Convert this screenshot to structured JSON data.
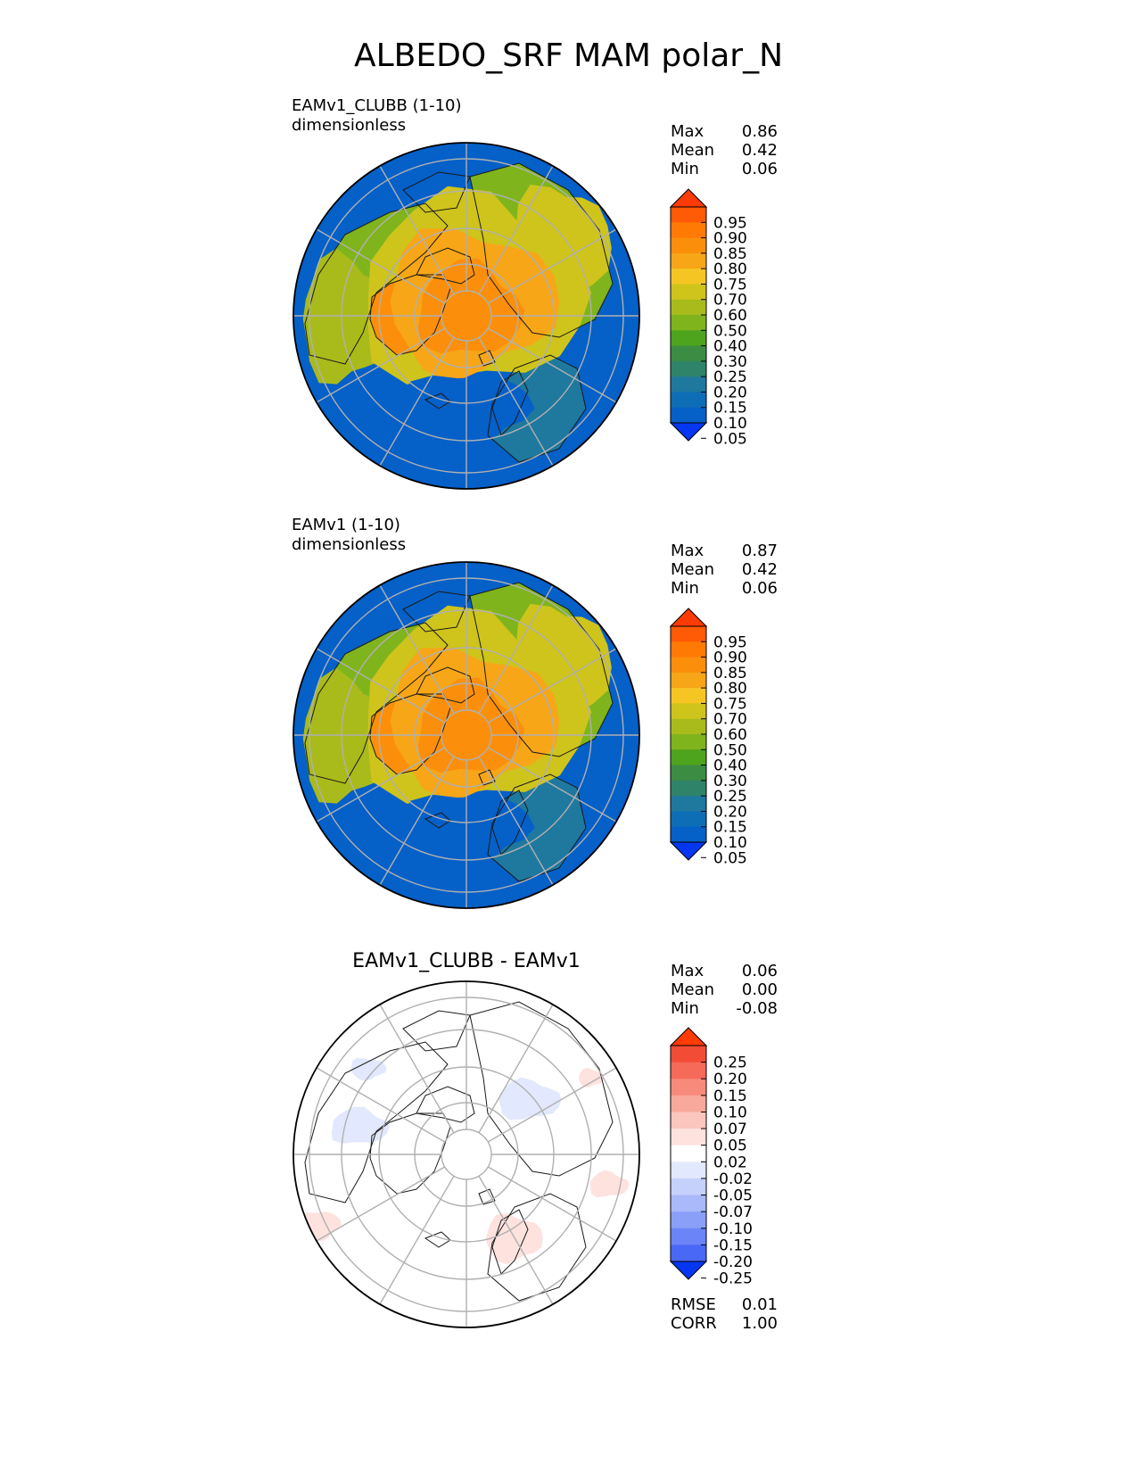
{
  "figure": {
    "title": "ALBEDO_SRF MAM polar_N"
  },
  "panels": [
    {
      "id": "test",
      "name_line": "EAMv1_CLUBB (1-10)",
      "units": "dimensionless",
      "stats": [
        {
          "label": "Max",
          "value": "0.86"
        },
        {
          "label": "Mean",
          "value": "0.42"
        },
        {
          "label": "Min",
          "value": "0.06"
        }
      ],
      "colorbar": {
        "ticks": [
          "0.95",
          "0.90",
          "0.85",
          "0.80",
          "0.75",
          "0.70",
          "0.60",
          "0.50",
          "0.40",
          "0.30",
          "0.25",
          "0.20",
          "0.15",
          "0.10",
          "0.05"
        ],
        "colors": [
          "#0537f0",
          "#0560c8",
          "#0d6eb6",
          "#1f789e",
          "#2f8368",
          "#3c8c43",
          "#4ea41c",
          "#7fb41c",
          "#a9bb1b",
          "#cec41c",
          "#f5c623",
          "#f7a618",
          "#fb8f0b",
          "#fe7a05",
          "#ff5a05",
          "#fe3a05"
        ],
        "under": "#0537f0",
        "over": "#fe3a05"
      }
    },
    {
      "id": "ref",
      "name_line": "EAMv1 (1-10)",
      "units": "dimensionless",
      "stats": [
        {
          "label": "Max",
          "value": "0.87"
        },
        {
          "label": "Mean",
          "value": "0.42"
        },
        {
          "label": "Min",
          "value": "0.06"
        }
      ],
      "colorbar": {
        "ticks": [
          "0.95",
          "0.90",
          "0.85",
          "0.80",
          "0.75",
          "0.70",
          "0.60",
          "0.50",
          "0.40",
          "0.30",
          "0.25",
          "0.20",
          "0.15",
          "0.10",
          "0.05"
        ],
        "colors": [
          "#0537f0",
          "#0560c8",
          "#0d6eb6",
          "#1f789e",
          "#2f8368",
          "#3c8c43",
          "#4ea41c",
          "#7fb41c",
          "#a9bb1b",
          "#cec41c",
          "#f5c623",
          "#f7a618",
          "#fb8f0b",
          "#fe7a05",
          "#ff5a05",
          "#fe3a05"
        ],
        "under": "#0537f0",
        "over": "#fe3a05"
      }
    },
    {
      "id": "diff",
      "title": "EAMv1_CLUBB - EAMv1",
      "stats": [
        {
          "label": "Max",
          "value": "0.06"
        },
        {
          "label": "Mean",
          "value": "0.00"
        },
        {
          "label": "Min",
          "value": "-0.08"
        }
      ],
      "metrics": [
        {
          "label": "RMSE",
          "value": "0.01"
        },
        {
          "label": "CORR",
          "value": "1.00"
        }
      ],
      "colorbar": {
        "ticks": [
          "0.25",
          "0.20",
          "0.15",
          "0.10",
          "0.07",
          "0.05",
          "0.02",
          "-0.02",
          "-0.05",
          "-0.07",
          "-0.10",
          "-0.15",
          "-0.20",
          "-0.25"
        ],
        "colors": [
          "#2e4ff5",
          "#4a68f6",
          "#6b84f7",
          "#8aa0f8",
          "#a9b9f9",
          "#c6d1fb",
          "#e2e8fd",
          "#ffffff",
          "#fde2de",
          "#fbc6bd",
          "#f9a89c",
          "#f78a7a",
          "#f56a58",
          "#f24c36",
          "#f02d14"
        ],
        "under": "#0537f0",
        "over": "#fe3a05"
      }
    }
  ],
  "chart_data": [
    {
      "type": "heatmap",
      "projection": "north polar stereographic",
      "title": "EAMv1_CLUBB (1-10)",
      "units": "dimensionless",
      "levels": [
        0.05,
        0.1,
        0.15,
        0.2,
        0.25,
        0.3,
        0.4,
        0.5,
        0.6,
        0.7,
        0.75,
        0.8,
        0.85,
        0.9,
        0.95
      ],
      "summary": {
        "max": 0.86,
        "mean": 0.42,
        "min": 0.06
      },
      "regions": {
        "central_arctic": 0.82,
        "greenland": 0.8,
        "north_siberia": 0.72,
        "canada": 0.65,
        "subarctic_land": 0.4,
        "north_atlantic": 0.07,
        "north_pacific": 0.07
      }
    },
    {
      "type": "heatmap",
      "projection": "north polar stereographic",
      "title": "EAMv1 (1-10)",
      "units": "dimensionless",
      "levels": [
        0.05,
        0.1,
        0.15,
        0.2,
        0.25,
        0.3,
        0.4,
        0.5,
        0.6,
        0.7,
        0.75,
        0.8,
        0.85,
        0.9,
        0.95
      ],
      "summary": {
        "max": 0.87,
        "mean": 0.42,
        "min": 0.06
      },
      "regions": {
        "central_arctic": 0.8,
        "greenland": 0.8,
        "north_siberia": 0.72,
        "canada": 0.68,
        "subarctic_land": 0.42,
        "north_atlantic": 0.07,
        "north_pacific": 0.07
      }
    },
    {
      "type": "heatmap",
      "projection": "north polar stereographic",
      "title": "EAMv1_CLUBB - EAMv1",
      "levels": [
        -0.25,
        -0.2,
        -0.15,
        -0.1,
        -0.07,
        -0.05,
        -0.02,
        0.02,
        0.05,
        0.07,
        0.1,
        0.15,
        0.2,
        0.25
      ],
      "summary": {
        "max": 0.06,
        "mean": 0.0,
        "min": -0.08,
        "rmse": 0.01,
        "corr": 1.0
      }
    }
  ]
}
